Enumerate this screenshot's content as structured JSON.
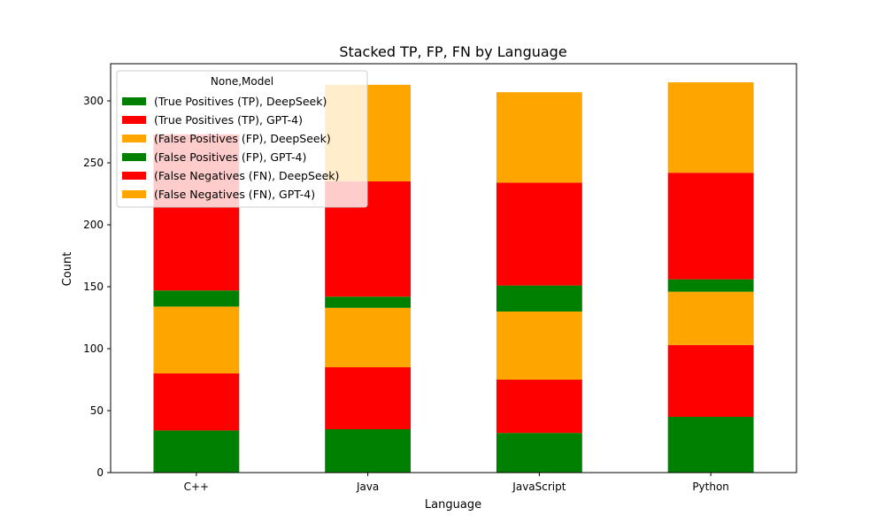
{
  "chart_data": {
    "type": "bar",
    "stacked": true,
    "title": "Stacked TP, FP, FN by Language",
    "xlabel": "Language",
    "ylabel": "Count",
    "ylim": [
      0,
      330
    ],
    "yticks": [
      0,
      50,
      100,
      150,
      200,
      250,
      300
    ],
    "categories": [
      "C++",
      "Java",
      "JavaScript",
      "Python"
    ],
    "legend": {
      "title": "None,Model",
      "location": "upper-left"
    },
    "series": [
      {
        "name": "(True Positives (TP), DeepSeek)",
        "color": "#008000",
        "values": [
          34,
          35,
          32,
          45
        ]
      },
      {
        "name": "(True Positives (TP), GPT-4)",
        "color": "#ff0000",
        "values": [
          46,
          50,
          43,
          58
        ]
      },
      {
        "name": "(False Positives (FP), DeepSeek)",
        "color": "#ffa500",
        "values": [
          54,
          48,
          55,
          43
        ]
      },
      {
        "name": "(False Positives (FP), GPT-4)",
        "color": "#008000",
        "values": [
          13,
          9,
          21,
          10
        ]
      },
      {
        "name": "(False Negatives (FN), DeepSeek)",
        "color": "#ff0000",
        "values": [
          126,
          93,
          83,
          86
        ]
      },
      {
        "name": "(False Negatives (FN), GPT-4)",
        "color": "#ffa500",
        "values": [
          0,
          78,
          73,
          73
        ]
      }
    ]
  }
}
